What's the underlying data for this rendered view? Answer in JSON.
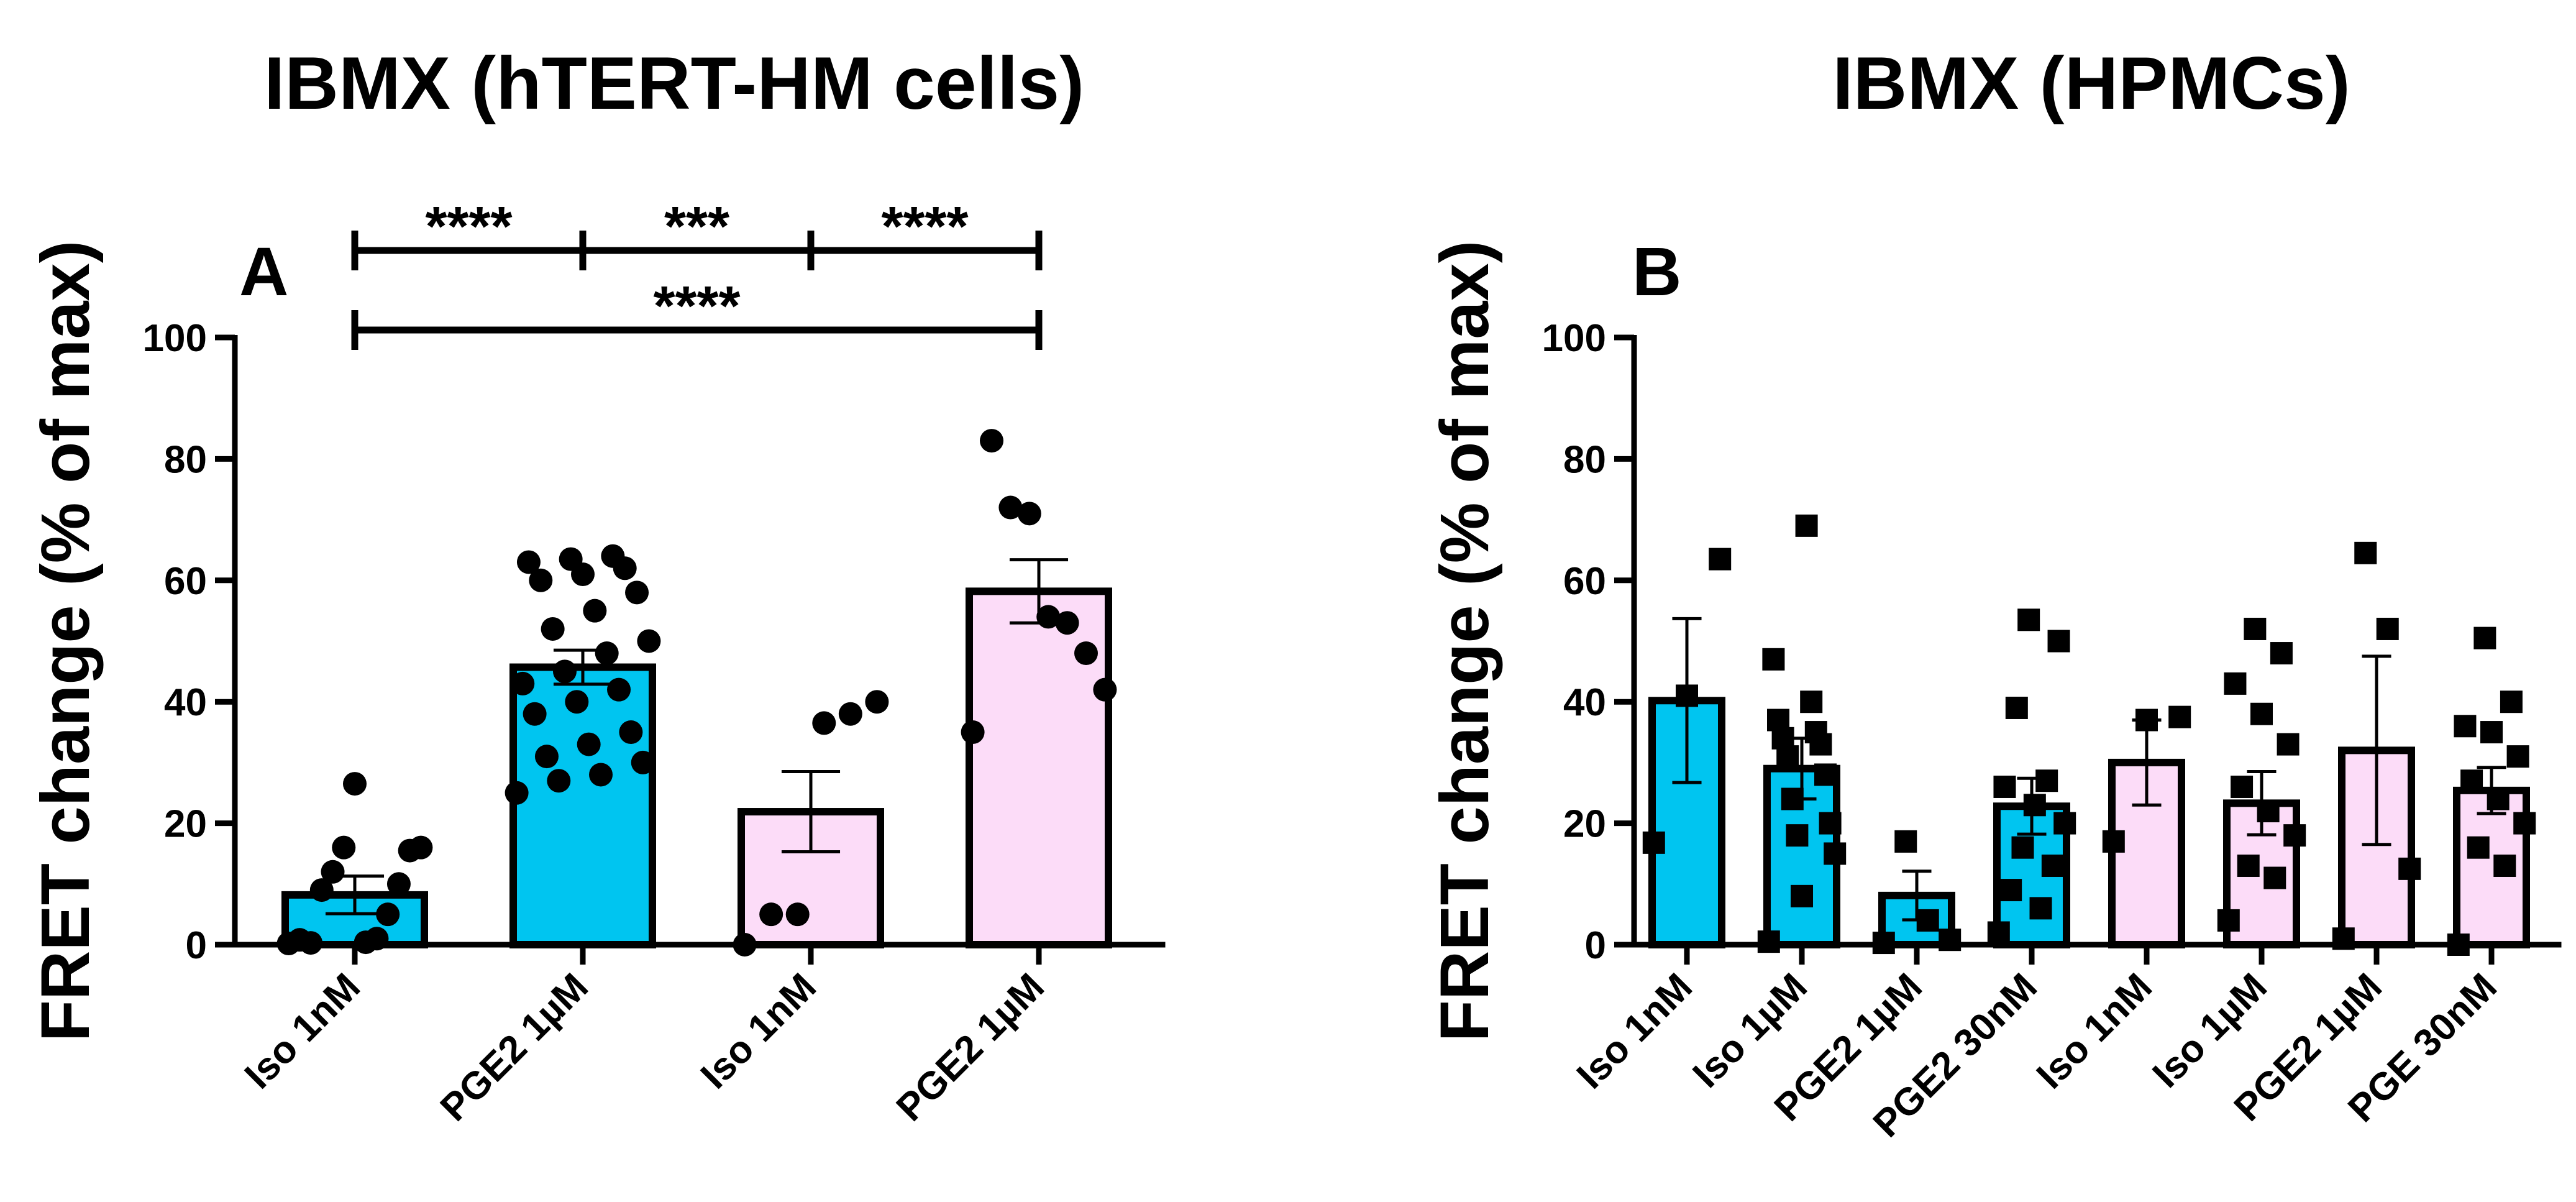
{
  "colors": {
    "cyan": "#00C5F0",
    "pink": "#FCDCF8",
    "black": "#000000"
  },
  "chart_data": [
    {
      "type": "bar",
      "panel": "A",
      "title": "IBMX (hTERT-HM cells)",
      "xlabel": "",
      "ylabel": "FRET change (% of max)",
      "ylim": [
        0,
        100
      ],
      "yticks": [
        "0",
        "20",
        "40",
        "60",
        "80",
        "100"
      ],
      "categories": [
        "Iso 1nM",
        "PGE2 1µM",
        "Iso 1nM",
        "PGE2 1µM"
      ],
      "values": [
        8.2,
        45.7,
        21.9,
        58.2
      ],
      "sem": [
        3.1,
        2.8,
        6.6,
        5.2
      ],
      "fills": [
        "cyan",
        "cyan",
        "pink",
        "pink"
      ],
      "marker": "circle",
      "points": [
        [
          0.2,
          0.4,
          0.8,
          1.0,
          0.3,
          5.0,
          9.0,
          10.0,
          12.0,
          15.5,
          16.0,
          16.0,
          26.5
        ],
        [
          25.0,
          27.0,
          28.0,
          30.0,
          31.0,
          33.0,
          35.0,
          38.0,
          40.0,
          42.0,
          43.0,
          45.0,
          48.0,
          50.0,
          52.0,
          55.0,
          58.0,
          60.0,
          61.0,
          62.0,
          63.0,
          63.5,
          64.0
        ],
        [
          0.0,
          5.0,
          5.0,
          36.5,
          38.0,
          40.0
        ],
        [
          35.0,
          42.0,
          48.0,
          53.0,
          54.0,
          71.0,
          72.0,
          83.0
        ]
      ],
      "comparisons": [
        {
          "from": 0,
          "to": 1,
          "label": "****",
          "row": 0
        },
        {
          "from": 1,
          "to": 2,
          "label": "***",
          "row": 0
        },
        {
          "from": 2,
          "to": 3,
          "label": "****",
          "row": 0
        },
        {
          "from": 0,
          "to": 3,
          "label": "****",
          "row": 1
        }
      ]
    },
    {
      "type": "bar",
      "panel": "B",
      "title": "IBMX (HPMCs)",
      "xlabel": "",
      "ylabel": "FRET change (% of max)",
      "ylim": [
        0,
        100
      ],
      "yticks": [
        "0",
        "20",
        "40",
        "60",
        "80",
        "100"
      ],
      "categories": [
        "Iso 1nM",
        "Iso 1µM",
        "PGE2 1µM",
        "PGE2 30nM",
        "Iso 1nM",
        "Iso 1µM",
        "PGE2 1µM",
        "PGE 30nM"
      ],
      "values": [
        40.2,
        29.0,
        8.1,
        22.8,
        30.0,
        23.3,
        32.0,
        25.4
      ],
      "sem": [
        13.5,
        5.0,
        4.0,
        4.6,
        7.0,
        5.2,
        15.5,
        3.8
      ],
      "fills": [
        "cyan",
        "cyan",
        "cyan",
        "cyan",
        "pink",
        "pink",
        "pink",
        "pink"
      ],
      "marker": "square",
      "points": [
        [
          16.8,
          41.0,
          63.5
        ],
        [
          0.5,
          8.0,
          15.0,
          18.0,
          20.0,
          24.0,
          28.0,
          31.0,
          33.0,
          34.0,
          35.0,
          37.0,
          40.0,
          47.0,
          69.0
        ],
        [
          0.3,
          0.8,
          4.0,
          17.0
        ],
        [
          2.0,
          6.0,
          9.0,
          13.0,
          16.0,
          20.0,
          23.0,
          26.0,
          27.0,
          39.0,
          50.0,
          53.5
        ],
        [
          17.0,
          37.0,
          37.5
        ],
        [
          4.0,
          11.0,
          13.0,
          18.0,
          22.0,
          26.0,
          33.0,
          38.0,
          43.0,
          48.0,
          52.0
        ],
        [
          1.0,
          12.5,
          52.0,
          64.5
        ],
        [
          0.0,
          13.0,
          16.0,
          20.0,
          24.0,
          27.0,
          31.0,
          35.0,
          36.0,
          40.0,
          50.5
        ]
      ]
    }
  ]
}
